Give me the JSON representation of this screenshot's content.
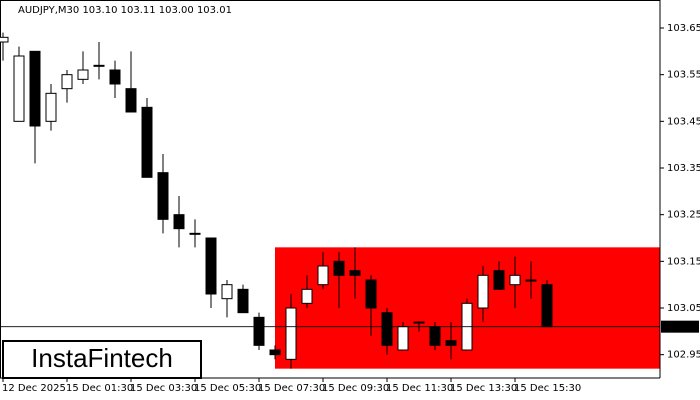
{
  "chart_data": {
    "type": "candlestick",
    "title": "AUDJPY,M30  103.10 103.11 103.00 103.01",
    "categories": [
      "12 Dec 2025",
      null,
      null,
      null,
      "15 Dec 01:30",
      null,
      null,
      null,
      "15 Dec 03:30",
      null,
      null,
      null,
      "15 Dec 05:30",
      null,
      null,
      null,
      "15 Dec 07:30",
      null,
      null,
      null,
      "15 Dec 09:30",
      null,
      null,
      null,
      "15 Dec 11:30",
      null,
      null,
      null,
      "15 Dec 13:30",
      null,
      null,
      null,
      "15 Dec 15:30",
      null,
      null
    ],
    "open": [
      103.62,
      103.45,
      103.6,
      103.45,
      103.52,
      103.54,
      103.57,
      103.56,
      103.52,
      103.48,
      103.34,
      103.25,
      103.21,
      103.2,
      103.07,
      103.09,
      103.03,
      102.96,
      102.94,
      103.06,
      103.1,
      103.15,
      103.13,
      103.11,
      103.04,
      102.96,
      103.02,
      103.01,
      102.98,
      102.96,
      103.05,
      103.13,
      103.1,
      103.11,
      103.1
    ],
    "high": [
      103.64,
      103.61,
      103.6,
      103.53,
      103.56,
      103.6,
      103.62,
      103.58,
      103.6,
      103.5,
      103.38,
      103.29,
      103.24,
      103.2,
      103.11,
      103.1,
      103.04,
      102.97,
      103.08,
      103.12,
      103.17,
      103.17,
      103.18,
      103.12,
      103.05,
      103.02,
      103.02,
      103.02,
      103.02,
      103.07,
      103.14,
      103.15,
      103.16,
      103.15,
      103.11
    ],
    "low": [
      103.58,
      103.45,
      103.36,
      103.43,
      103.49,
      103.53,
      103.54,
      103.5,
      103.47,
      103.33,
      103.21,
      103.18,
      103.18,
      103.05,
      103.03,
      103.04,
      102.96,
      102.94,
      102.92,
      103.05,
      103.09,
      103.05,
      103.07,
      102.99,
      102.95,
      102.96,
      103.0,
      102.96,
      102.94,
      102.96,
      103.02,
      103.09,
      103.05,
      103.07,
      103.01
    ],
    "close": [
      103.63,
      103.59,
      103.44,
      103.51,
      103.55,
      103.56,
      103.57,
      103.53,
      103.47,
      103.33,
      103.24,
      103.22,
      103.21,
      103.08,
      103.1,
      103.04,
      102.97,
      102.95,
      103.05,
      103.09,
      103.14,
      103.12,
      103.12,
      103.05,
      102.97,
      103.01,
      103.02,
      102.97,
      102.97,
      103.06,
      103.12,
      103.09,
      103.12,
      103.11,
      103.01
    ],
    "ylim": [
      102.9,
      103.71
    ],
    "yticks": [
      102.95,
      103.05,
      103.15,
      103.25,
      103.35,
      103.45,
      103.55,
      103.65
    ],
    "last_price": 103.01,
    "zone": {
      "high": 103.18,
      "low": 102.92,
      "color": "#ff0000"
    },
    "up_color": "#ffffff",
    "down_color": "#000000",
    "watermark": "InstaFintech"
  }
}
